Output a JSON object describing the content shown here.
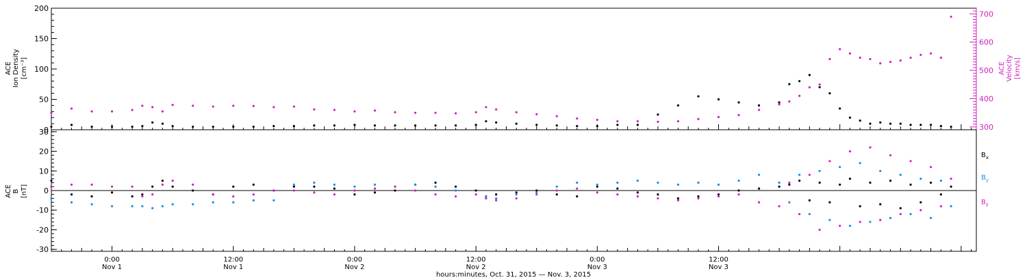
{
  "chart_data": [
    {
      "type": "scatter",
      "title": "",
      "ylabel_lines": [
        "ACE",
        "Ion Density",
        "[cm⁻³]"
      ],
      "ylim": [
        0,
        200
      ],
      "yticks": [
        "0",
        "50",
        "100",
        "150",
        "200"
      ],
      "right_axis": {
        "label_lines": [
          "ACE",
          "Velocity",
          "[km/s]"
        ],
        "ylim": [
          290,
          720
        ],
        "yticks": [
          "300",
          "400",
          "500",
          "600",
          "700"
        ],
        "color": "#d020c0"
      },
      "series": [
        {
          "name": "",
          "axis": "left",
          "color": "#000000",
          "x": [
            -6,
            -4,
            -2,
            0,
            2,
            3,
            4,
            5,
            6,
            8,
            10,
            12,
            14,
            16,
            18,
            20,
            22,
            24,
            26,
            28,
            30,
            32,
            34,
            36,
            37,
            38,
            40,
            42,
            44,
            46,
            48,
            50,
            52,
            54,
            56,
            58,
            60,
            62,
            64,
            66,
            67,
            68,
            69,
            70,
            71,
            72,
            73,
            74,
            75,
            76,
            77,
            78,
            79,
            80,
            81,
            82,
            83
          ],
          "y": [
            5,
            8,
            5,
            5,
            5,
            6,
            12,
            10,
            6,
            5,
            5,
            5,
            5,
            6,
            6,
            7,
            7,
            8,
            7,
            7,
            7,
            7,
            7,
            8,
            14,
            12,
            10,
            8,
            7,
            6,
            6,
            8,
            8,
            25,
            40,
            55,
            50,
            45,
            40,
            45,
            75,
            80,
            90,
            70,
            60,
            35,
            20,
            15,
            10,
            12,
            10,
            10,
            8,
            8,
            8,
            6,
            5
          ]
        },
        {
          "name": "",
          "axis": "right",
          "color": "#d020c0",
          "x": [
            -6,
            -4,
            -2,
            0,
            2,
            3,
            4,
            5,
            6,
            8,
            10,
            12,
            14,
            16,
            18,
            20,
            22,
            24,
            26,
            28,
            30,
            32,
            34,
            36,
            37,
            38,
            40,
            42,
            44,
            46,
            48,
            50,
            52,
            54,
            56,
            58,
            60,
            62,
            64,
            66,
            67,
            68,
            69,
            70,
            71,
            72,
            73,
            74,
            75,
            76,
            77,
            78,
            79,
            80,
            81,
            82,
            83
          ],
          "y": [
            350,
            365,
            355,
            355,
            360,
            375,
            370,
            355,
            378,
            375,
            372,
            375,
            374,
            370,
            372,
            362,
            360,
            355,
            358,
            352,
            350,
            350,
            348,
            352,
            370,
            362,
            352,
            345,
            338,
            330,
            325,
            320,
            320,
            318,
            320,
            328,
            335,
            342,
            360,
            380,
            390,
            410,
            440,
            450,
            540,
            575,
            560,
            545,
            540,
            525,
            530,
            535,
            545,
            555,
            560,
            545,
            690
          ]
        }
      ]
    },
    {
      "type": "scatter",
      "title": "",
      "ylabel_lines": [
        "ACE",
        "B",
        "[nT]"
      ],
      "ylim": [
        -31,
        31
      ],
      "yticks": [
        "-30",
        "-20",
        "-10",
        "0",
        "10",
        "20",
        "30"
      ],
      "legend_position": "right",
      "series": [
        {
          "name": "Bx",
          "label_main": "B",
          "label_sub": "x",
          "color": "#000000",
          "x": [
            -6,
            -4,
            -2,
            0,
            2,
            3,
            4,
            5,
            6,
            8,
            10,
            12,
            14,
            16,
            18,
            20,
            22,
            24,
            26,
            28,
            30,
            32,
            34,
            36,
            37,
            38,
            40,
            42,
            44,
            46,
            48,
            50,
            52,
            54,
            56,
            58,
            60,
            62,
            64,
            66,
            67,
            68,
            69,
            70,
            71,
            72,
            73,
            74,
            75,
            76,
            77,
            78,
            79,
            80,
            81,
            82,
            83
          ],
          "y": [
            5,
            -2,
            -3,
            -1,
            -3,
            -2,
            2,
            5,
            2,
            0,
            -2,
            2,
            3,
            0,
            2,
            2,
            1,
            -2,
            -1,
            0,
            3,
            4,
            2,
            0,
            -3,
            -2,
            -1,
            0,
            -2,
            -3,
            2,
            1,
            -1,
            -2,
            -4,
            -3,
            -2,
            0,
            1,
            2,
            3,
            5,
            -5,
            4,
            -6,
            3,
            6,
            -8,
            4,
            -7,
            5,
            -9,
            3,
            -6,
            4,
            -2,
            2
          ]
        },
        {
          "name": "By",
          "label_main": "B",
          "label_sub": "y",
          "color": "#1a8ce0",
          "x": [
            -6,
            -4,
            -2,
            0,
            2,
            3,
            4,
            5,
            6,
            8,
            10,
            12,
            14,
            16,
            18,
            20,
            22,
            24,
            26,
            28,
            30,
            32,
            34,
            36,
            37,
            38,
            40,
            42,
            44,
            46,
            48,
            50,
            52,
            54,
            56,
            58,
            60,
            62,
            64,
            66,
            67,
            68,
            69,
            70,
            71,
            72,
            73,
            74,
            75,
            76,
            77,
            78,
            79,
            80,
            81,
            82,
            83
          ],
          "y": [
            -4,
            -6,
            -7,
            -8,
            -8,
            -8,
            -9,
            -8,
            -7,
            -7,
            -6,
            -6,
            -5,
            -5,
            3,
            4,
            3,
            2,
            3,
            2,
            3,
            2,
            0,
            -2,
            -3,
            -4,
            -2,
            -1,
            2,
            4,
            3,
            4,
            5,
            4,
            3,
            4,
            3,
            5,
            8,
            4,
            -6,
            8,
            -12,
            10,
            -15,
            12,
            -18,
            14,
            -16,
            10,
            -14,
            8,
            -12,
            6,
            -14,
            5,
            -8
          ]
        },
        {
          "name": "Bz",
          "label_main": "B",
          "label_sub": "z",
          "color": "#d020c0",
          "x": [
            -6,
            -4,
            -2,
            0,
            2,
            3,
            4,
            5,
            6,
            8,
            10,
            12,
            14,
            16,
            18,
            20,
            22,
            24,
            26,
            28,
            30,
            32,
            34,
            36,
            37,
            38,
            40,
            42,
            44,
            46,
            48,
            50,
            52,
            54,
            56,
            58,
            60,
            62,
            64,
            66,
            67,
            68,
            69,
            70,
            71,
            72,
            73,
            74,
            75,
            76,
            77,
            78,
            79,
            80,
            81,
            82,
            83
          ],
          "y": [
            2,
            3,
            3,
            2,
            2,
            -3,
            -2,
            3,
            5,
            3,
            -2,
            -3,
            -2,
            0,
            0,
            -1,
            -2,
            0,
            1,
            2,
            0,
            -2,
            -3,
            -2,
            -4,
            -5,
            -4,
            -2,
            0,
            1,
            -1,
            -2,
            -3,
            -4,
            -5,
            -4,
            -3,
            -2,
            -6,
            -8,
            4,
            -12,
            8,
            -20,
            15,
            -18,
            20,
            -16,
            22,
            -15,
            18,
            -12,
            15,
            -10,
            12,
            -8,
            6
          ]
        }
      ]
    }
  ],
  "x_axis": {
    "range_hours": [
      -6,
      85.5
    ],
    "ticks": [
      {
        "hour": 0,
        "time": "0:00",
        "date": "Nov 1"
      },
      {
        "hour": 12,
        "time": "12:00",
        "date": "Nov 1"
      },
      {
        "hour": 24,
        "time": "0:00",
        "date": "Nov 2"
      },
      {
        "hour": 36,
        "time": "12:00",
        "date": "Nov 2"
      },
      {
        "hour": 48,
        "time": "0:00",
        "date": "Nov 3"
      },
      {
        "hour": 60,
        "time": "12:00",
        "date": "Nov 3"
      }
    ],
    "label": "hours:minutes, Oct. 31, 2015 — Nov.  3, 2015"
  }
}
